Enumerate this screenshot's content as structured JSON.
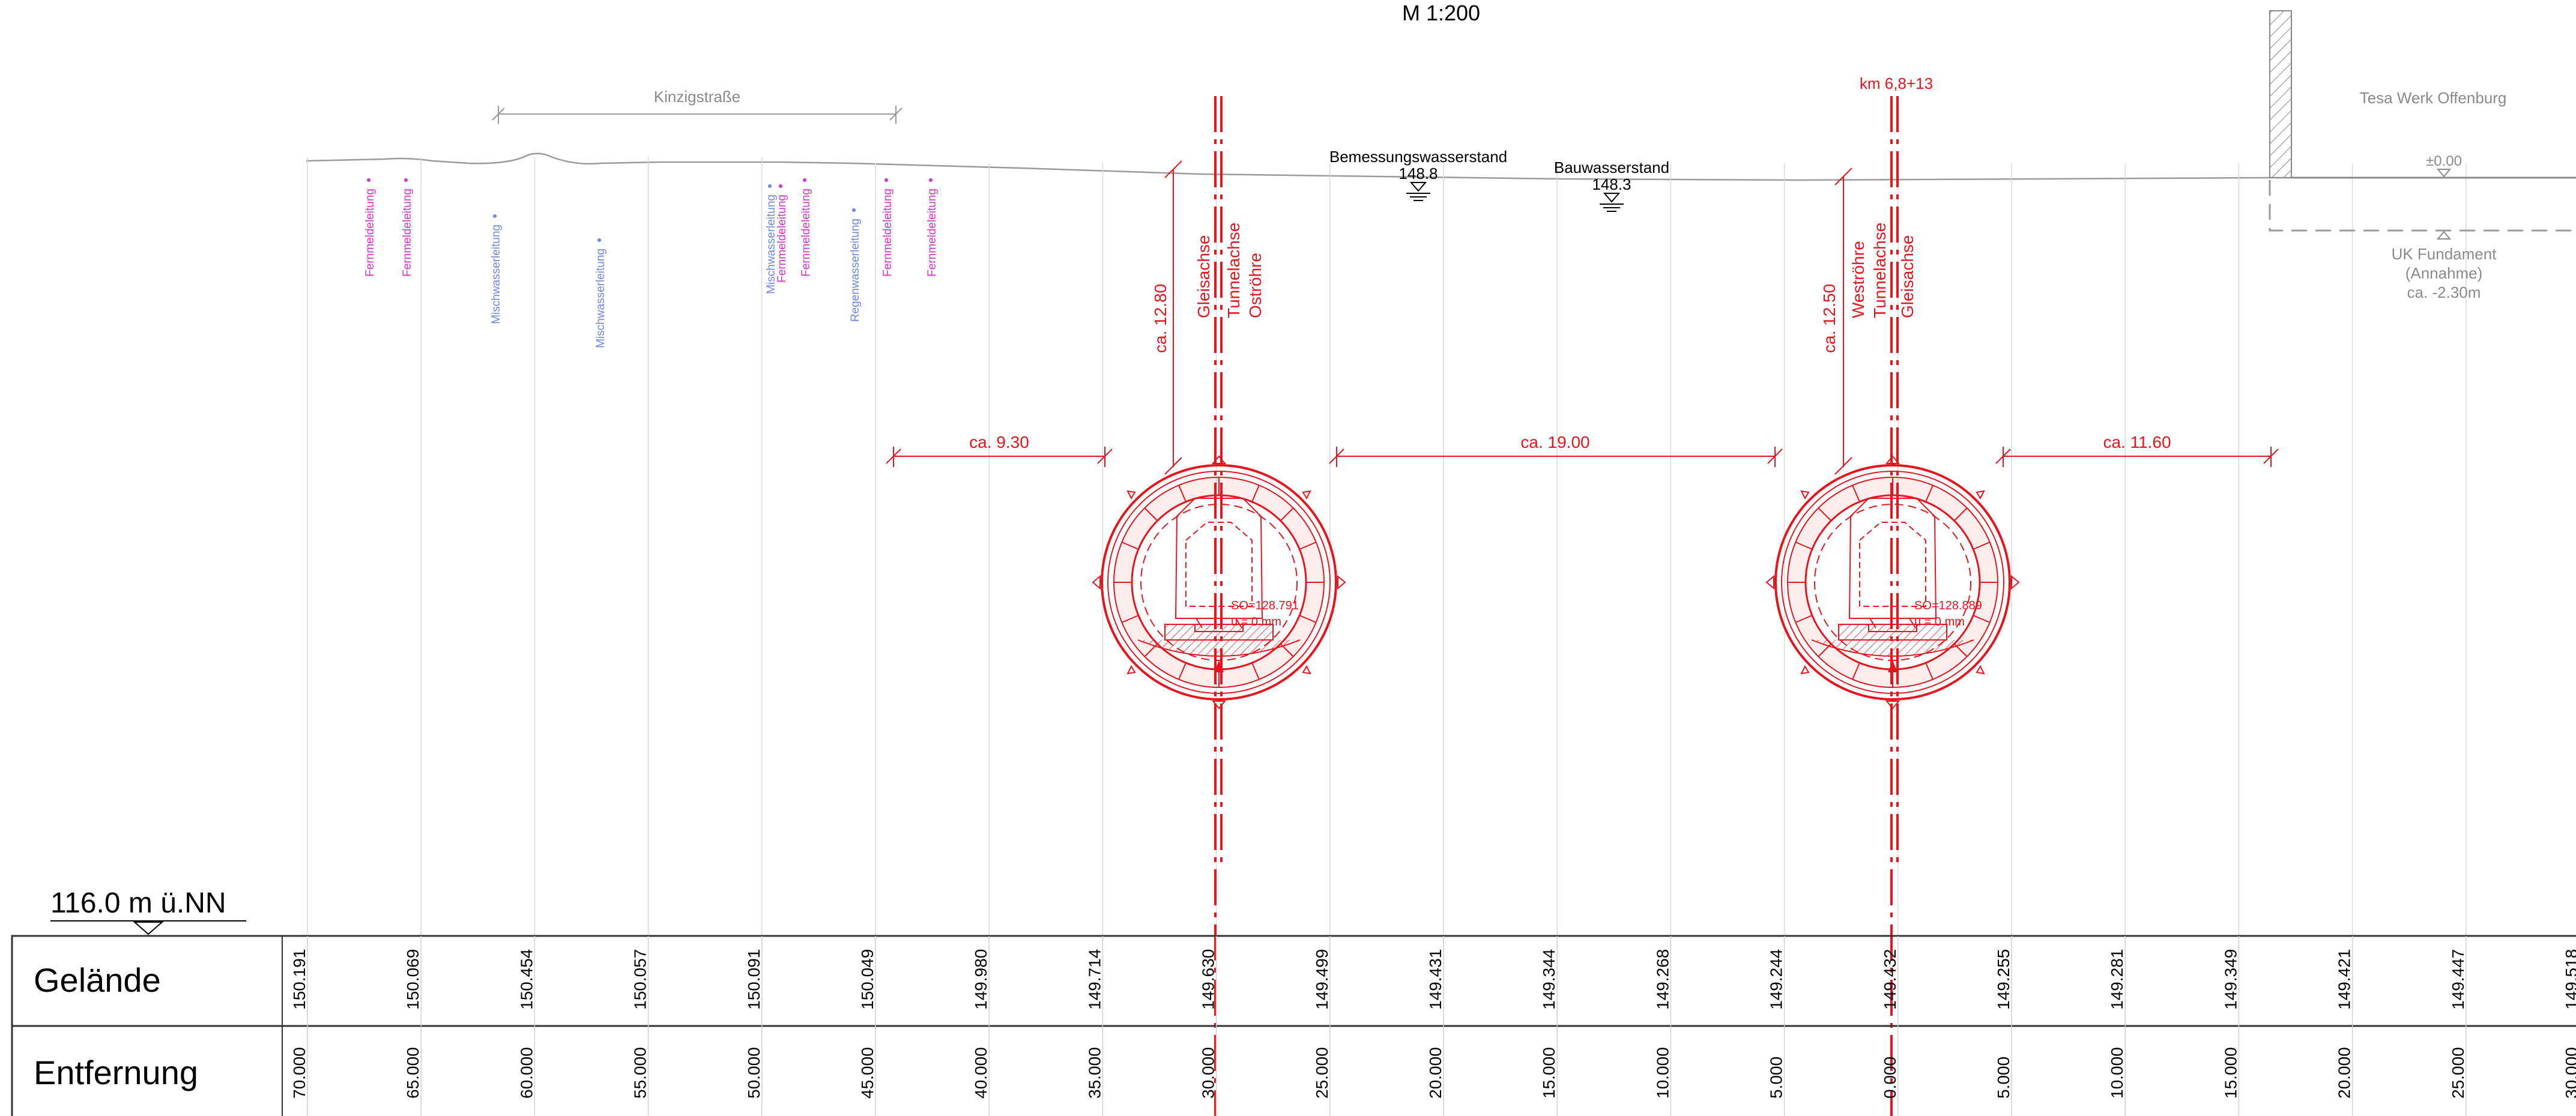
{
  "scale": "M 1:200",
  "street": "Kinzigstraße",
  "km_label": "km 6,8+13",
  "building": {
    "name": "Tesa Werk Offenburg",
    "level": "±0.00",
    "foundation_lines": [
      "UK Fundament",
      "(Annahme)",
      "ca. -2.30m"
    ]
  },
  "water_levels": [
    {
      "label": "Bemessungswasserstand",
      "value": "148.8"
    },
    {
      "label": "Bauwasserstand",
      "value": "148.3"
    }
  ],
  "tunnels": [
    {
      "axis_labels": [
        "Gleisachse",
        "Tunnelachse",
        "Oströhre"
      ],
      "depth": "ca. 12.80",
      "so": "SO=128.791",
      "u": "u = 0 mm"
    },
    {
      "axis_labels": [
        "Weströhre",
        "Tunnelachse",
        "Gleisachse"
      ],
      "depth": "ca. 12.50",
      "so": "SO=128.889",
      "u": "u = 0 mm"
    }
  ],
  "clearances": [
    "ca. 9.30",
    "ca. 19.00",
    "ca. 11.60"
  ],
  "utilities": [
    {
      "label": "Fernmeldeleitung",
      "color": "#d633c8"
    },
    {
      "label": "Fernmeldeleitung",
      "color": "#d633c8"
    },
    {
      "label": "Mischwasserleitung",
      "color": "#6c88e0"
    },
    {
      "label": "Mischwasserleitung",
      "color": "#6c88e0"
    },
    {
      "label": "Mischwasserleitung",
      "color": "#6c88e0"
    },
    {
      "label": "Fernmeldeleitung",
      "color": "#d633c8"
    },
    {
      "label": "Fernmeldeleitung",
      "color": "#d633c8"
    },
    {
      "label": "Regenwasserleitung",
      "color": "#6c88e0"
    },
    {
      "label": "Fernmeldeleitung",
      "color": "#d633c8"
    },
    {
      "label": "Fernmeldeleitung",
      "color": "#d633c8"
    }
  ],
  "datum": "116.0 m ü.NN",
  "table": {
    "row_gelaende": "Gelände",
    "row_entfernung": "Entfernung",
    "gelaende": [
      "150.191",
      "150.069",
      "150.454",
      "150.057",
      "150.091",
      "150.049",
      "149.980",
      "149.714",
      "149.630",
      "149.499",
      "149.431",
      "149.344",
      "149.268",
      "149.244",
      "149.432",
      "149.255",
      "149.281",
      "149.349",
      "149.421",
      "149.447",
      "149.518"
    ],
    "entfernung": [
      "70.000",
      "65.000",
      "60.000",
      "55.000",
      "50.000",
      "45.000",
      "40.000",
      "35.000",
      "30.000",
      "25.000",
      "20.000",
      "15.000",
      "10.000",
      "5.000",
      "0.000",
      "5.000",
      "10.000",
      "15.000",
      "20.000",
      "25.000",
      "30.000"
    ]
  },
  "colors": {
    "red": "#e8141c",
    "grey": "#9a9a9a",
    "magenta": "#d633c8",
    "blue": "#6c88e0"
  }
}
